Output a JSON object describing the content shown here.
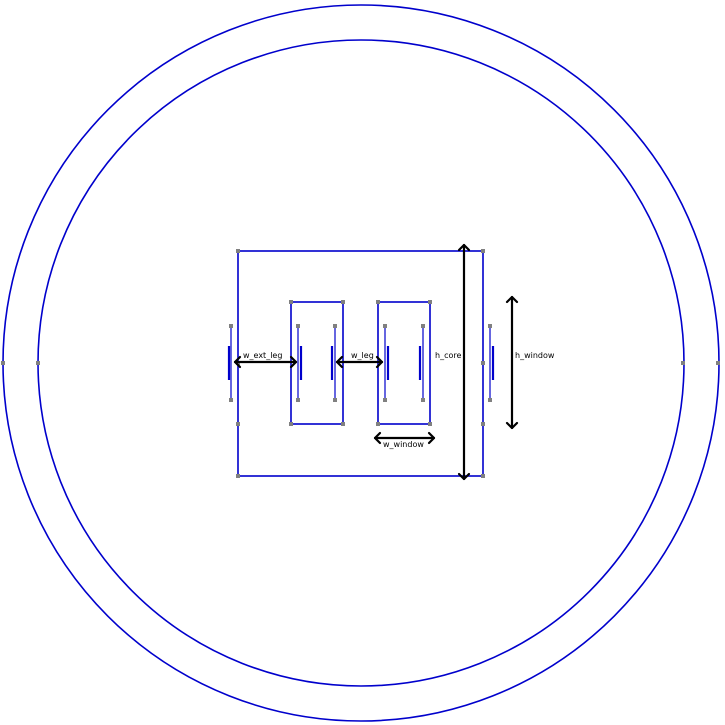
{
  "colors": {
    "geometry": "#0000cc",
    "dimension": "#000000",
    "vertex": "#808080",
    "background": "#ffffff"
  },
  "dimensions": {
    "w_ext_leg": "w_ext_leg",
    "w_leg": "w_leg",
    "w_window": "w_window",
    "h_core": "h_core",
    "h_window": "h_window"
  }
}
